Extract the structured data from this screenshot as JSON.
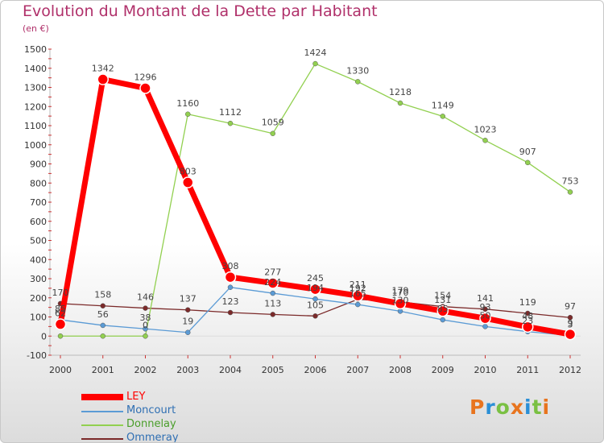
{
  "header": {
    "title": "Evolution du Montant de la Dette par Habitant",
    "subtitle": "(en €)"
  },
  "brand": {
    "text": "Proxiti",
    "letter_colors": [
      "#e8741e",
      "#2b8fd6",
      "#7ac043",
      "#e8741e",
      "#2b8fd6",
      "#7ac043",
      "#e8741e"
    ]
  },
  "chart_data": {
    "type": "line",
    "title": "Evolution du Montant de la Dette par Habitant",
    "ylabel": "(en €)",
    "xlabel": "",
    "ylim": [
      -100,
      1500
    ],
    "yticks": [
      -100,
      0,
      100,
      200,
      300,
      400,
      500,
      600,
      700,
      800,
      900,
      1000,
      1100,
      1200,
      1300,
      1400,
      1500
    ],
    "categories": [
      "2000",
      "2001",
      "2002",
      "2003",
      "2004",
      "2005",
      "2006",
      "2007",
      "2008",
      "2009",
      "2010",
      "2011",
      "2012"
    ],
    "grid": false,
    "legend_position": "bottom-left",
    "series": [
      {
        "name": "LEY",
        "color": "#ff0000",
        "values": [
          62,
          1342,
          1296,
          803,
          308,
          277,
          245,
          211,
          170,
          131,
          93,
          48,
          9
        ],
        "labels": [
          "62",
          "1342",
          "1296",
          "803",
          "308",
          "277",
          "245",
          "211",
          "170",
          "131",
          "93",
          "48",
          "9"
        ]
      },
      {
        "name": "Moncourt",
        "color": "#5b9bd5",
        "values": [
          85,
          56,
          38,
          19,
          255,
          224,
          194,
          165,
          130,
          85,
          50,
          23,
          3
        ],
        "labels": [
          "85",
          "56",
          "38",
          "19",
          "",
          "224",
          "194",
          "165",
          "130",
          "85",
          "50",
          "23",
          "3"
        ]
      },
      {
        "name": "Donnelay",
        "color": "#92d050",
        "values": [
          0,
          0,
          0,
          1160,
          1112,
          1059,
          1424,
          1330,
          1218,
          1149,
          1023,
          907,
          753
        ],
        "labels": [
          "",
          "",
          "0",
          "1160",
          "1112",
          "1059",
          "1424",
          "1330",
          "1218",
          "1149",
          "1023",
          "907",
          "753"
        ]
      },
      {
        "name": "Ommeray",
        "color": "#7b2a2a",
        "values": [
          170,
          158,
          146,
          137,
          123,
          113,
          105,
          192,
          179,
          154,
          141,
          119,
          97
        ],
        "labels": [
          "170",
          "158",
          "146",
          "137",
          "123",
          "113",
          "105",
          "192",
          "179",
          "154",
          "141",
          "119",
          "97"
        ]
      }
    ]
  }
}
